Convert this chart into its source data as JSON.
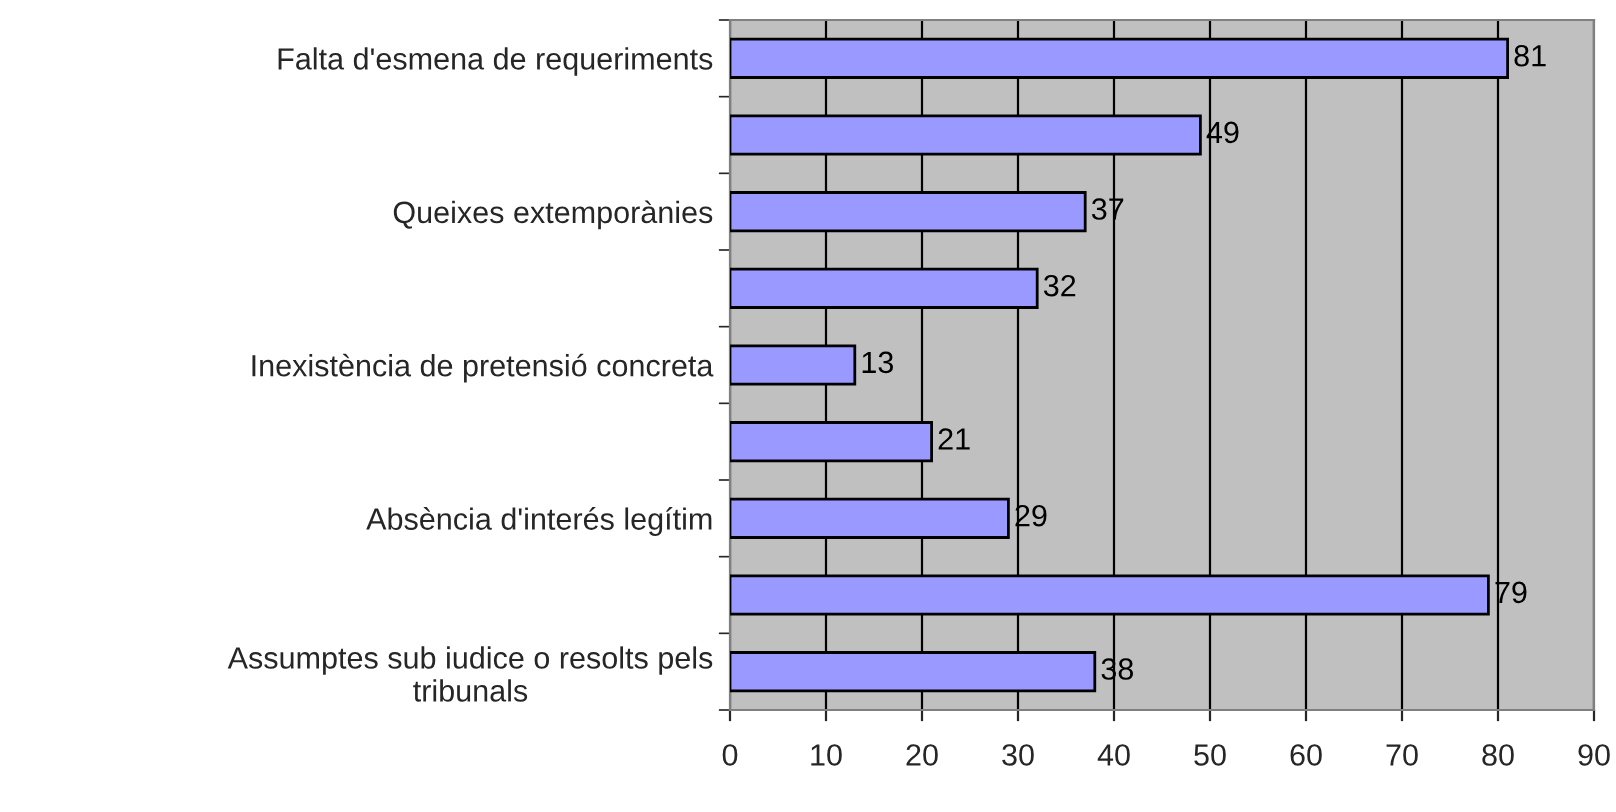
{
  "chart_data": {
    "type": "bar",
    "orientation": "horizontal",
    "categories": [
      "Falta d'esmena de requeriments",
      null,
      "Queixes extemporànies",
      null,
      "Inexistència de pretensió concreta",
      null,
      "Absència d'interés legítim",
      null,
      "Assumptes sub iudice o resolts pels\ntribunals"
    ],
    "values": [
      81,
      49,
      37,
      32,
      13,
      21,
      29,
      79,
      38
    ],
    "color": "#9999ff",
    "xlim": [
      0,
      90
    ],
    "xticks": [
      0,
      10,
      20,
      30,
      40,
      50,
      60,
      70,
      80,
      90
    ],
    "grid": "x",
    "data_labels": true,
    "legend": false
  }
}
